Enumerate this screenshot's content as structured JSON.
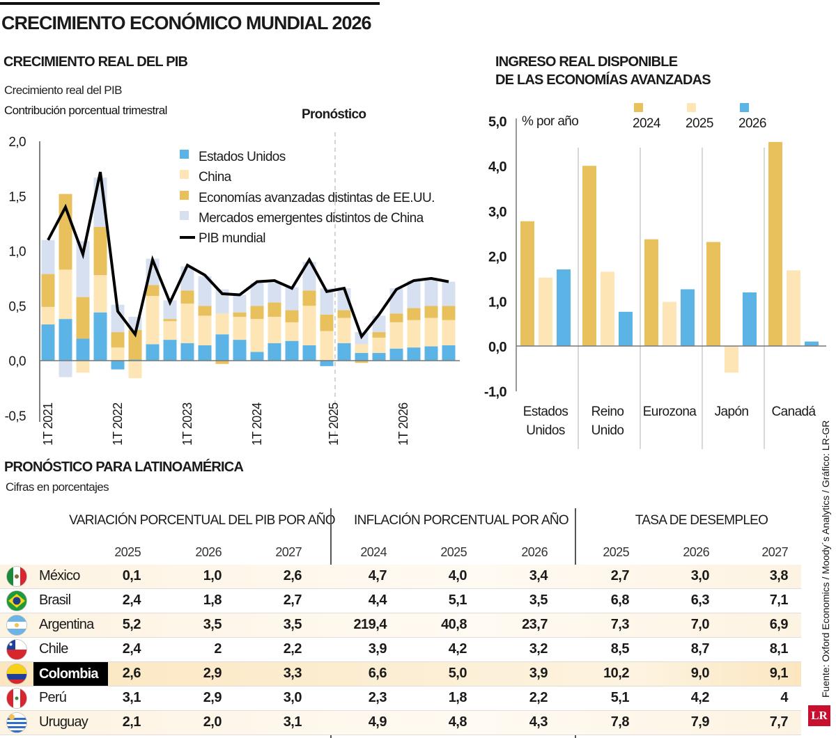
{
  "title": "CRECIMIENTO ECONÓMICO MUNDIAL 2026",
  "left_chart": {
    "heading": "CRECIMIENTO REAL DEL PIB",
    "subtitle1": "Crecimiento real del PIB",
    "subtitle2": "Contribución porcentual trimestral",
    "forecast_label": "Pronóstico"
  },
  "right_chart": {
    "heading1": "INGRESO REAL DISPONIBLE",
    "heading2": "DE LAS ECONOMÍAS AVANZADAS"
  },
  "chart_data": [
    {
      "type": "bar",
      "stacked": true,
      "title": "CRECIMIENTO REAL DEL PIB",
      "ylim": [
        -0.5,
        2.0
      ],
      "yticks": [
        "2,0",
        "1,5",
        "1,0",
        "0,5",
        "0,0",
        "-0,5"
      ],
      "ytick_values": [
        2.0,
        1.5,
        1.0,
        0.5,
        0.0,
        -0.5
      ],
      "xtick_labels": [
        "1T 2021",
        "1T 2022",
        "1T 2023",
        "1T 2024",
        "1T 2025",
        "1T 2026"
      ],
      "xtick_index": [
        0,
        4,
        8,
        12,
        16,
        20
      ],
      "forecast_start_index": 16,
      "legend_placement": "top",
      "categories": [
        "1T 2021",
        "2T 2021",
        "3T 2021",
        "4T 2021",
        "1T 2022",
        "2T 2022",
        "3T 2022",
        "4T 2022",
        "1T 2023",
        "2T 2023",
        "3T 2023",
        "4T 2023",
        "1T 2024",
        "2T 2024",
        "3T 2024",
        "4T 2024",
        "1T 2025",
        "2T 2025",
        "3T 2025",
        "4T 2025",
        "1T 2026",
        "2T 2026",
        "3T 2026",
        "4T 2026"
      ],
      "series": [
        {
          "name": "Estados Unidos",
          "color": "#5bb4e5",
          "values": [
            0.33,
            0.38,
            0.2,
            0.44,
            -0.08,
            0.01,
            0.15,
            0.19,
            0.16,
            0.14,
            0.24,
            0.19,
            0.08,
            0.16,
            0.18,
            0.14,
            -0.05,
            0.16,
            0.07,
            0.07,
            0.11,
            0.12,
            0.13,
            0.14
          ]
        },
        {
          "name": "China",
          "color": "#fde5b5",
          "values": [
            0.16,
            0.45,
            -0.11,
            0.34,
            0.12,
            -0.16,
            0.44,
            0.17,
            0.36,
            0.27,
            0.19,
            0.21,
            0.3,
            0.24,
            0.17,
            0.36,
            0.27,
            0.23,
            0.08,
            0.14,
            0.24,
            0.25,
            0.26,
            0.23
          ]
        },
        {
          "name": "Economías avanzadas distintas de EE.UU.",
          "color": "#e8c05c",
          "values": [
            0.3,
            0.69,
            0.38,
            0.44,
            0.14,
            0.27,
            0.1,
            0.02,
            0.12,
            0.09,
            -0.03,
            0.04,
            0.12,
            0.13,
            0.11,
            0.14,
            0.15,
            0.07,
            -0.02,
            0.05,
            0.08,
            0.11,
            0.11,
            0.13
          ]
        },
        {
          "name": "Mercados emergentes distintos de China",
          "color": "#d6e0f0",
          "values": [
            0.31,
            0.0,
            0.51,
            0.45,
            0.25,
            0.12,
            0.24,
            0.17,
            0.22,
            0.27,
            0.22,
            0.16,
            0.21,
            0.18,
            0.21,
            0.26,
            0.24,
            0.2,
            0.11,
            0.15,
            0.23,
            0.25,
            0.24,
            0.22
          ]
        },
        {
          "name": "PIB mundial",
          "type": "line",
          "color": "#000000",
          "values": [
            1.1,
            1.4,
            0.97,
            1.72,
            0.45,
            0.24,
            0.92,
            0.53,
            0.87,
            0.78,
            0.61,
            0.6,
            0.72,
            0.73,
            0.66,
            0.92,
            0.63,
            0.66,
            0.22,
            0.42,
            0.65,
            0.73,
            0.75,
            0.72
          ]
        }
      ],
      "negative_extra": {
        "Mercados emergentes distintos de China": [
          0,
          -0.15,
          0,
          0,
          0,
          0,
          0,
          0,
          0,
          0,
          0,
          0,
          0,
          0,
          0,
          0,
          0,
          0,
          0,
          0,
          0,
          0,
          0,
          0
        ]
      }
    },
    {
      "type": "bar",
      "title": "INGRESO REAL DISPONIBLE DE LAS ECONOMÍAS AVANZADAS",
      "ylabel": "% por año",
      "ylim": [
        -1.0,
        5.0
      ],
      "yticks": [
        "5,0",
        "4,0",
        "3,0",
        "2,0",
        "1,0",
        "0,0",
        "-1,0"
      ],
      "ytick_values": [
        5,
        4,
        3,
        2,
        1,
        0,
        -1
      ],
      "legend_placement": "top",
      "categories": [
        "Estados Unidos",
        "Reino Unido",
        "Eurozona",
        "Japón",
        "Canadá"
      ],
      "category_lines": [
        [
          "Estados",
          "Unidos"
        ],
        [
          "Reino",
          "Unido"
        ],
        [
          "Eurozona"
        ],
        [
          "Japón"
        ],
        [
          "Canadá"
        ]
      ],
      "series": [
        {
          "name": "2024",
          "color": "#e8c05c",
          "values": [
            2.77,
            4.0,
            2.37,
            2.31,
            4.53
          ]
        },
        {
          "name": "2025",
          "color": "#fde5b5",
          "values": [
            1.52,
            1.65,
            0.98,
            -0.59,
            1.68
          ]
        },
        {
          "name": "2026",
          "color": "#5bb4e5",
          "values": [
            1.7,
            0.76,
            1.26,
            1.19,
            0.1
          ]
        }
      ]
    }
  ],
  "table": {
    "heading": "PRONÓSTICO PARA LATINOAMÉRICA",
    "subtitle": "Cifras en porcentajes",
    "groups": [
      {
        "label": "VARIACIÓN PORCENTUAL DEL PIB POR AÑO",
        "years": [
          "2025",
          "2026",
          "2027"
        ]
      },
      {
        "label": "INFLACIÓN PORCENTUAL POR AÑO",
        "years": [
          "2024",
          "2025",
          "2026"
        ]
      },
      {
        "label": "TASA DE DESEMPLEO",
        "years": [
          "2025",
          "2026",
          "2027"
        ]
      }
    ],
    "rows": [
      {
        "country": "México",
        "flag": "mexico-flag",
        "values": [
          "0,1",
          "1,0",
          "2,6",
          "4,7",
          "4,0",
          "3,4",
          "2,7",
          "3,0",
          "3,8"
        ]
      },
      {
        "country": "Brasil",
        "flag": "brazil-flag",
        "values": [
          "2,4",
          "1,8",
          "2,7",
          "4,4",
          "5,1",
          "3,5",
          "6,8",
          "6,3",
          "7,1"
        ]
      },
      {
        "country": "Argentina",
        "flag": "argentina-flag",
        "values": [
          "5,2",
          "3,5",
          "3,5",
          "219,4",
          "40,8",
          "23,7",
          "7,3",
          "7,0",
          "6,9"
        ]
      },
      {
        "country": "Chile",
        "flag": "chile-flag",
        "values": [
          "2,4",
          "2",
          "2,2",
          "3,9",
          "4,2",
          "3,2",
          "8,5",
          "8,7",
          "8,1"
        ]
      },
      {
        "country": "Colombia",
        "flag": "colombia-flag",
        "highlight": true,
        "values": [
          "2,6",
          "2,9",
          "3,3",
          "6,6",
          "5,0",
          "3,9",
          "10,2",
          "9,0",
          "9,1"
        ]
      },
      {
        "country": "Perú",
        "flag": "peru-flag",
        "values": [
          "3,1",
          "2,9",
          "3,0",
          "2,3",
          "1,8",
          "2,2",
          "5,1",
          "4,2",
          "4"
        ]
      },
      {
        "country": "Uruguay",
        "flag": "uruguay-flag",
        "values": [
          "2,1",
          "2,0",
          "3,1",
          "4,9",
          "4,8",
          "4,3",
          "7,8",
          "7,9",
          "7,7"
        ]
      }
    ]
  },
  "source": "Fuente: Oxford Economics / Moody´s Analytics / Gráfico: LR-GR",
  "logo": "LR"
}
